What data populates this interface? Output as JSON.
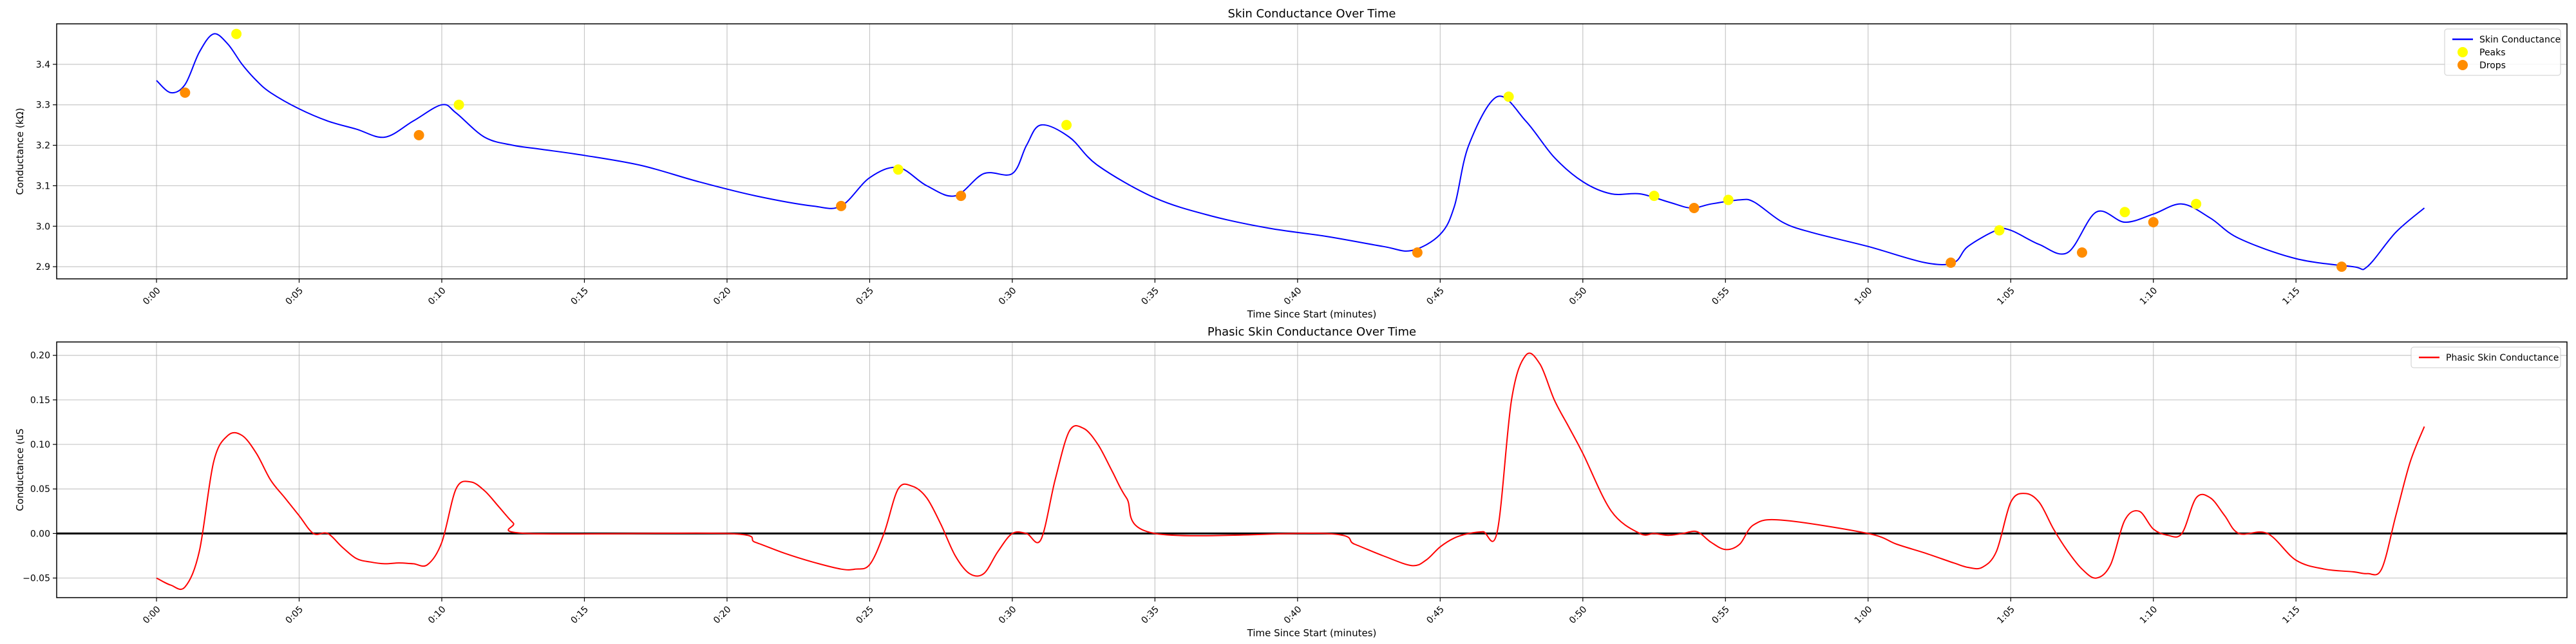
{
  "chart_data": [
    {
      "type": "line",
      "title": "Skin Conductance Over Time",
      "xlabel": "Time Since Start (minutes)",
      "ylabel": "Conductance (kΩ)",
      "xlim": [
        -3.5,
        84.5
      ],
      "ylim": [
        2.87,
        3.5
      ],
      "grid": true,
      "legend_placement": "top-right",
      "xticks": [
        {
          "value": 0,
          "label": "0:00"
        },
        {
          "value": 5,
          "label": "0:05"
        },
        {
          "value": 10,
          "label": "0:10"
        },
        {
          "value": 15,
          "label": "0:15"
        },
        {
          "value": 20,
          "label": "0:20"
        },
        {
          "value": 25,
          "label": "0:25"
        },
        {
          "value": 30,
          "label": "0:30"
        },
        {
          "value": 35,
          "label": "0:35"
        },
        {
          "value": 40,
          "label": "0:40"
        },
        {
          "value": 45,
          "label": "0:45"
        },
        {
          "value": 50,
          "label": "0:50"
        },
        {
          "value": 55,
          "label": "0:55"
        },
        {
          "value": 60,
          "label": "1:00"
        },
        {
          "value": 65,
          "label": "1:05"
        },
        {
          "value": 70,
          "label": "1:10"
        },
        {
          "value": 75,
          "label": "1:15"
        }
      ],
      "yticks": [
        {
          "value": 2.9,
          "label": "2.9"
        },
        {
          "value": 3.0,
          "label": "3.0"
        },
        {
          "value": 3.1,
          "label": "3.1"
        },
        {
          "value": 3.2,
          "label": "3.2"
        },
        {
          "value": 3.3,
          "label": "3.3"
        },
        {
          "value": 3.4,
          "label": "3.4"
        }
      ],
      "series": [
        {
          "name": "Skin Conductance",
          "color": "#0000ff",
          "style": "line",
          "x": [
            0.0,
            0.5,
            1.0,
            1.5,
            2.0,
            2.5,
            3.0,
            3.5,
            4.0,
            5.0,
            6.0,
            7.0,
            8.0,
            9.0,
            10.0,
            10.5,
            11.5,
            12.5,
            13.5,
            15.0,
            17.0,
            19.0,
            21.0,
            23.0,
            24.0,
            25.0,
            26.0,
            27.0,
            28.0,
            29.0,
            30.0,
            30.5,
            31.0,
            32.0,
            33.0,
            35.0,
            37.0,
            39.0,
            41.0,
            43.0,
            44.0,
            45.0,
            45.5,
            46.0,
            47.0,
            48.0,
            49.0,
            50.0,
            51.0,
            52.0,
            53.0,
            53.8,
            54.5,
            55.5,
            56.0,
            57.0,
            58.0,
            60.0,
            62.0,
            63.0,
            63.5,
            64.5,
            65.0,
            66.0,
            67.0,
            68.0,
            69.0,
            70.0,
            71.0,
            72.0,
            73.0,
            75.0,
            77.0,
            77.5,
            78.5,
            79.5
          ],
          "y": [
            3.36,
            3.33,
            3.35,
            3.43,
            3.475,
            3.45,
            3.4,
            3.36,
            3.33,
            3.29,
            3.26,
            3.24,
            3.22,
            3.26,
            3.3,
            3.28,
            3.22,
            3.2,
            3.19,
            3.175,
            3.15,
            3.11,
            3.075,
            3.05,
            3.05,
            3.12,
            3.145,
            3.1,
            3.075,
            3.13,
            3.13,
            3.2,
            3.25,
            3.22,
            3.15,
            3.07,
            3.025,
            2.995,
            2.975,
            2.95,
            2.94,
            2.98,
            3.05,
            3.2,
            3.32,
            3.26,
            3.17,
            3.11,
            3.08,
            3.08,
            3.06,
            3.045,
            3.055,
            3.065,
            3.06,
            3.01,
            2.985,
            2.95,
            2.91,
            2.91,
            2.95,
            2.99,
            2.99,
            2.955,
            2.935,
            3.035,
            3.01,
            3.03,
            3.055,
            3.02,
            2.97,
            2.92,
            2.9,
            2.9,
            2.985,
            3.045
          ]
        },
        {
          "name": "Peaks",
          "color": "#ffff00",
          "style": "marker",
          "x": [
            2.8,
            10.6,
            26.0,
            31.9,
            47.4,
            52.5,
            55.1,
            64.6,
            69.0,
            71.5
          ],
          "y": [
            3.475,
            3.3,
            3.14,
            3.25,
            3.32,
            3.075,
            3.065,
            2.99,
            3.035,
            3.055
          ]
        },
        {
          "name": "Drops",
          "color": "#ff8c00",
          "style": "marker",
          "x": [
            1.0,
            9.2,
            24.0,
            28.2,
            44.2,
            53.9,
            62.9,
            67.5,
            70.0,
            76.6
          ],
          "y": [
            3.33,
            3.225,
            3.05,
            3.075,
            2.935,
            3.045,
            2.91,
            2.935,
            3.01,
            2.9
          ]
        }
      ]
    },
    {
      "type": "line",
      "title": "Phasic Skin Conductance Over Time",
      "xlabel": "Time Since Start (minutes)",
      "ylabel": "Conductance (uS",
      "xlim": [
        -3.5,
        84.5
      ],
      "ylim": [
        -0.072,
        0.215
      ],
      "grid": true,
      "zero_line": true,
      "legend_placement": "top-right",
      "xticks": [
        {
          "value": 0,
          "label": "0:00"
        },
        {
          "value": 5,
          "label": "0:05"
        },
        {
          "value": 10,
          "label": "0:10"
        },
        {
          "value": 15,
          "label": "0:15"
        },
        {
          "value": 20,
          "label": "0:20"
        },
        {
          "value": 25,
          "label": "0:25"
        },
        {
          "value": 30,
          "label": "0:30"
        },
        {
          "value": 35,
          "label": "0:35"
        },
        {
          "value": 40,
          "label": "0:40"
        },
        {
          "value": 45,
          "label": "0:45"
        },
        {
          "value": 50,
          "label": "0:50"
        },
        {
          "value": 55,
          "label": "0:55"
        },
        {
          "value": 60,
          "label": "1:00"
        },
        {
          "value": 65,
          "label": "1:05"
        },
        {
          "value": 70,
          "label": "1:10"
        },
        {
          "value": 75,
          "label": "1:15"
        }
      ],
      "yticks": [
        {
          "value": -0.05,
          "label": "−0.05"
        },
        {
          "value": 0.0,
          "label": "0.00"
        },
        {
          "value": 0.05,
          "label": "0.05"
        },
        {
          "value": 0.1,
          "label": "0.10"
        },
        {
          "value": 0.15,
          "label": "0.15"
        },
        {
          "value": 0.2,
          "label": "0.20"
        }
      ],
      "series": [
        {
          "name": "Phasic Skin Conductance",
          "color": "#ff0000",
          "style": "line",
          "x": [
            0.0,
            0.5,
            1.0,
            1.5,
            2.0,
            2.5,
            3.0,
            3.5,
            4.0,
            4.5,
            5.0,
            5.5,
            6.0,
            6.5,
            7.0,
            7.5,
            8.0,
            8.5,
            9.0,
            9.5,
            10.0,
            10.5,
            11.0,
            11.5,
            12.0,
            12.5,
            13.0,
            20.0,
            21.0,
            22.0,
            23.0,
            24.0,
            24.5,
            25.0,
            25.5,
            26.0,
            26.5,
            27.0,
            27.5,
            28.0,
            28.5,
            29.0,
            29.5,
            30.0,
            30.5,
            31.0,
            31.5,
            32.0,
            32.5,
            33.0,
            33.5,
            34.0,
            35.0,
            41.0,
            42.0,
            43.0,
            44.0,
            44.5,
            45.0,
            45.5,
            46.0,
            46.5,
            47.0,
            47.5,
            48.0,
            48.5,
            49.0,
            49.5,
            50.0,
            51.0,
            52.0,
            52.5,
            53.0,
            53.5,
            54.0,
            54.5,
            55.0,
            55.5,
            56.0,
            57.0,
            60.0,
            61.0,
            62.0,
            63.0,
            63.5,
            64.0,
            64.5,
            65.0,
            65.5,
            66.0,
            66.5,
            67.0,
            67.5,
            68.0,
            68.5,
            69.0,
            69.5,
            70.0,
            70.5,
            71.0,
            71.5,
            72.0,
            72.5,
            73.0,
            74.0,
            75.0,
            76.0,
            77.0,
            77.5,
            78.0,
            78.5,
            79.0,
            79.5
          ],
          "y": [
            -0.05,
            -0.058,
            -0.06,
            -0.02,
            0.08,
            0.11,
            0.11,
            0.09,
            0.06,
            0.04,
            0.02,
            0.0,
            0.0,
            -0.015,
            -0.028,
            -0.032,
            -0.034,
            -0.033,
            -0.034,
            -0.035,
            -0.01,
            0.05,
            0.058,
            0.048,
            0.03,
            0.012,
            0.0,
            0.0,
            -0.01,
            -0.022,
            -0.032,
            -0.04,
            -0.04,
            -0.035,
            0.0,
            0.05,
            0.053,
            0.04,
            0.01,
            -0.025,
            -0.045,
            -0.045,
            -0.02,
            0.0,
            0.0,
            -0.007,
            0.06,
            0.115,
            0.118,
            0.1,
            0.07,
            0.04,
            0.0,
            0.0,
            -0.012,
            -0.025,
            -0.036,
            -0.03,
            -0.015,
            -0.005,
            0.0,
            0.002,
            0.002,
            0.15,
            0.2,
            0.19,
            0.15,
            0.12,
            0.09,
            0.025,
            0.0,
            0.0,
            -0.002,
            0.0,
            0.002,
            -0.01,
            -0.018,
            -0.012,
            0.01,
            0.015,
            0.0,
            -0.012,
            -0.022,
            -0.033,
            -0.038,
            -0.038,
            -0.02,
            0.035,
            0.045,
            0.035,
            0.005,
            -0.02,
            -0.04,
            -0.05,
            -0.035,
            0.015,
            0.025,
            0.005,
            -0.002,
            0.0,
            0.04,
            0.04,
            0.02,
            0.0,
            0.0,
            -0.03,
            -0.04,
            -0.043,
            -0.045,
            -0.04,
            0.02,
            0.08,
            0.12
          ]
        }
      ]
    }
  ]
}
